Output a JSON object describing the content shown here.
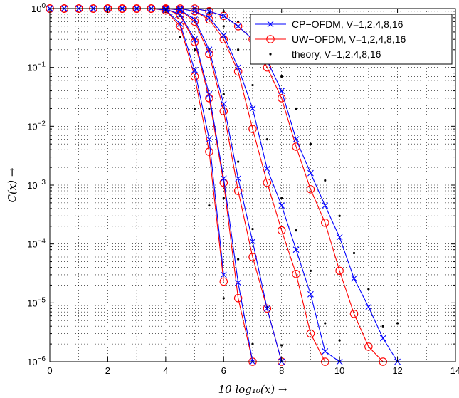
{
  "chart_data": {
    "type": "line",
    "xlabel": "10 log₁₀(x)  →",
    "ylabel": "C(x)  →",
    "xlim": [
      0,
      14
    ],
    "ylim": [
      1e-06,
      1
    ],
    "yscale": "log",
    "grid": "dotted, major and minor",
    "legend_position": "top-right",
    "x_ticks": [
      "0",
      "2",
      "4",
      "6",
      "8",
      "10",
      "12",
      "14"
    ],
    "y_ticks": [
      {
        "base": "10",
        "exp": "0"
      },
      {
        "base": "10",
        "exp": "−1"
      },
      {
        "base": "10",
        "exp": "−2"
      },
      {
        "base": "10",
        "exp": "−3"
      },
      {
        "base": "10",
        "exp": "−4"
      },
      {
        "base": "10",
        "exp": "−5"
      },
      {
        "base": "10",
        "exp": "−6"
      }
    ],
    "legend": [
      {
        "label": "CP−OFDM, V=1,2,4,8,16",
        "color": "#0000ff",
        "marker": "x"
      },
      {
        "label": "UW−OFDM, V=1,2,4,8,16",
        "color": "#ff0000",
        "marker": "o"
      },
      {
        "label": "theory, V=1,2,4,8,16",
        "color": "#000000",
        "marker": "dot"
      }
    ],
    "series": [
      {
        "group": "cp",
        "V": 1,
        "x": [
          0,
          0.5,
          1,
          1.5,
          2,
          2.5,
          3,
          3.5,
          4,
          4.5,
          5,
          5.5,
          6
        ],
        "y": [
          1,
          1,
          1,
          1,
          1,
          1,
          1,
          1,
          0.95,
          0.55,
          0.09,
          0.006,
          3e-05
        ]
      },
      {
        "group": "uw",
        "V": 1,
        "x": [
          0,
          0.5,
          1,
          1.5,
          2,
          2.5,
          3,
          3.5,
          4,
          4.5,
          5,
          5.5,
          6
        ],
        "y": [
          1,
          1,
          1,
          1,
          1,
          1,
          1,
          1,
          0.93,
          0.5,
          0.07,
          0.0037,
          2.3e-05
        ]
      },
      {
        "group": "cp",
        "V": 2,
        "x": [
          0,
          0.5,
          1,
          1.5,
          2,
          2.5,
          3,
          3.5,
          4,
          4.5,
          5,
          5.5,
          6,
          6.5,
          7
        ],
        "y": [
          1,
          1,
          1,
          1,
          1,
          1,
          1,
          1,
          0.98,
          0.8,
          0.3,
          0.035,
          0.0013,
          2.2e-05,
          1e-06
        ]
      },
      {
        "group": "uw",
        "V": 2,
        "x": [
          0,
          0.5,
          1,
          1.5,
          2,
          2.5,
          3,
          3.5,
          4,
          4.5,
          5,
          5.5,
          6,
          6.5,
          7
        ],
        "y": [
          1,
          1,
          1,
          1,
          1,
          1,
          1,
          1,
          0.98,
          0.77,
          0.27,
          0.03,
          0.0011,
          1.2e-05,
          1e-06
        ]
      },
      {
        "group": "cp",
        "V": 4,
        "x": [
          0,
          0.5,
          1,
          1.5,
          2,
          2.5,
          3,
          3.5,
          4,
          4.5,
          5,
          5.5,
          6,
          6.5,
          7,
          7.5,
          8
        ],
        "y": [
          1,
          1,
          1,
          1,
          1,
          1,
          1,
          1,
          1,
          0.95,
          0.65,
          0.2,
          0.024,
          0.0013,
          0.00011,
          8e-06,
          1e-06
        ]
      },
      {
        "group": "uw",
        "V": 4,
        "x": [
          0,
          0.5,
          1,
          1.5,
          2,
          2.5,
          3,
          3.5,
          4,
          4.5,
          5,
          5.5,
          6,
          6.5,
          7,
          7.5,
          8
        ],
        "y": [
          1,
          1,
          1,
          1,
          1,
          1,
          1,
          1,
          1,
          0.94,
          0.6,
          0.17,
          0.018,
          0.0008,
          6e-05,
          8e-06,
          1e-06
        ]
      },
      {
        "group": "cp",
        "V": 8,
        "x": [
          0,
          0.5,
          1,
          1.5,
          2,
          2.5,
          3,
          3.5,
          4,
          4.5,
          5,
          5.5,
          6,
          6.5,
          7,
          7.5,
          8,
          8.5,
          9,
          9.5,
          10
        ],
        "y": [
          1,
          1,
          1,
          1,
          1,
          1,
          1,
          1,
          1,
          1,
          0.9,
          0.7,
          0.35,
          0.1,
          0.02,
          0.0019,
          0.00045,
          8e-05,
          1.4e-05,
          1.5e-06,
          1e-06
        ]
      },
      {
        "group": "uw",
        "V": 8,
        "x": [
          0,
          0.5,
          1,
          1.5,
          2,
          2.5,
          3,
          3.5,
          4,
          4.5,
          5,
          5.5,
          6,
          6.5,
          7,
          7.5,
          8,
          8.5,
          9,
          9.5
        ],
        "y": [
          1,
          1,
          1,
          1,
          1,
          1,
          1,
          1,
          1,
          1,
          0.9,
          0.65,
          0.3,
          0.085,
          0.009,
          0.0011,
          0.00017,
          3.1e-05,
          3e-06,
          1e-06
        ]
      },
      {
        "group": "cp",
        "V": 16,
        "x": [
          0,
          0.5,
          1,
          1.5,
          2,
          2.5,
          3,
          3.5,
          4,
          4.5,
          5,
          5.5,
          6,
          6.5,
          7,
          7.5,
          8,
          8.5,
          9,
          9.5,
          10,
          10.5,
          11,
          11.5,
          12
        ],
        "y": [
          1,
          1,
          1,
          1,
          1,
          1,
          1,
          1,
          1,
          1,
          1,
          0.9,
          0.75,
          0.5,
          0.3,
          0.13,
          0.04,
          0.006,
          0.0016,
          0.00045,
          0.00013,
          2.6e-05,
          8.5e-06,
          2.5e-06,
          1e-06
        ]
      },
      {
        "group": "uw",
        "V": 16,
        "x": [
          0,
          0.5,
          1,
          1.5,
          2,
          2.5,
          3,
          3.5,
          4,
          4.5,
          5,
          5.5,
          6,
          6.5,
          7,
          7.5,
          8,
          8.5,
          9,
          9.5,
          10,
          10.5,
          11,
          11.5
        ],
        "y": [
          1,
          1,
          1,
          1,
          1,
          1,
          1,
          1,
          1,
          1,
          1,
          0.9,
          0.75,
          0.5,
          0.3,
          0.1,
          0.03,
          0.0045,
          0.00085,
          0.00023,
          3.5e-05,
          6.5e-06,
          1.8e-06,
          1e-06
        ]
      },
      {
        "group": "th",
        "V": 1,
        "x": [
          4.5,
          5,
          5.5,
          6
        ],
        "y": [
          0.33,
          0.02,
          0.00045,
          1.2e-05
        ]
      },
      {
        "group": "th",
        "V": 2,
        "x": [
          4.5,
          5,
          5.5,
          6,
          6.5,
          7
        ],
        "y": [
          0.75,
          0.2,
          0.02,
          0.0006,
          5.5e-05,
          2e-06
        ]
      },
      {
        "group": "th",
        "V": 4,
        "x": [
          4.5,
          5,
          5.5,
          6,
          6.5,
          7,
          7.5,
          8
        ],
        "y": [
          0.98,
          0.6,
          0.2,
          0.035,
          0.0025,
          0.00018,
          8.5e-06,
          1.9e-06
        ]
      },
      {
        "group": "th",
        "V": 8,
        "x": [
          5,
          5.5,
          6,
          6.5,
          7,
          7.5,
          8,
          8.5,
          9,
          9.5,
          10
        ],
        "y": [
          1,
          0.85,
          0.5,
          0.2,
          0.05,
          0.006,
          0.0006,
          0.00017,
          3.5e-05,
          4.5e-06,
          2.3e-06
        ]
      },
      {
        "group": "th",
        "V": 16,
        "x": [
          5.5,
          6,
          6.5,
          7,
          7.5,
          8,
          8.5,
          9,
          9.5,
          10,
          10.5,
          11,
          11.5,
          12
        ],
        "y": [
          1,
          0.9,
          0.6,
          0.35,
          0.15,
          0.07,
          0.02,
          0.005,
          0.0012,
          0.0003,
          7e-05,
          1.7e-05,
          4e-06,
          4.5e-06
        ]
      }
    ]
  }
}
